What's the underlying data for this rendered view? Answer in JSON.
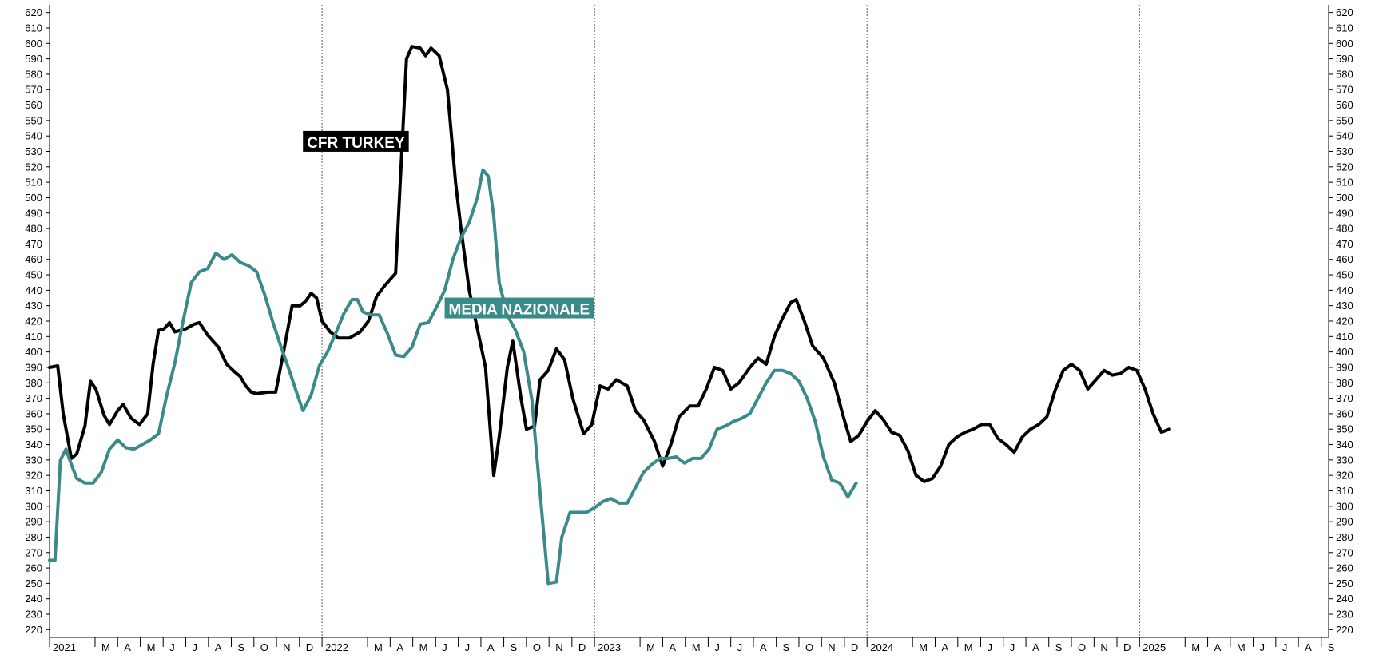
{
  "chart_data": {
    "type": "line",
    "title": "",
    "xlabel": "",
    "ylabel": "",
    "ylim": [
      215,
      625
    ],
    "y_ticks": [
      220,
      230,
      240,
      250,
      260,
      270,
      280,
      290,
      300,
      310,
      320,
      330,
      340,
      350,
      360,
      370,
      380,
      390,
      400,
      410,
      420,
      430,
      440,
      450,
      460,
      470,
      480,
      490,
      500,
      510,
      520,
      530,
      540,
      550,
      560,
      570,
      580,
      590,
      600,
      610,
      620
    ],
    "x_range": [
      2021.0,
      2025.694
    ],
    "grid": "vertical dotted lines at year boundaries",
    "x_axis_labels": [
      {
        "x": 2021.0,
        "text": "2021",
        "year": true
      },
      {
        "x": 2021.167,
        "text": "M"
      },
      {
        "x": 2021.25,
        "text": "A"
      },
      {
        "x": 2021.333,
        "text": "M"
      },
      {
        "x": 2021.417,
        "text": "J"
      },
      {
        "x": 2021.5,
        "text": "J"
      },
      {
        "x": 2021.583,
        "text": "A"
      },
      {
        "x": 2021.667,
        "text": "S"
      },
      {
        "x": 2021.75,
        "text": "O"
      },
      {
        "x": 2021.833,
        "text": "N"
      },
      {
        "x": 2021.917,
        "text": "D"
      },
      {
        "x": 2022.0,
        "text": "2022",
        "year": true
      },
      {
        "x": 2022.167,
        "text": "M"
      },
      {
        "x": 2022.25,
        "text": "A"
      },
      {
        "x": 2022.333,
        "text": "M"
      },
      {
        "x": 2022.417,
        "text": "J"
      },
      {
        "x": 2022.5,
        "text": "J"
      },
      {
        "x": 2022.583,
        "text": "A"
      },
      {
        "x": 2022.667,
        "text": "S"
      },
      {
        "x": 2022.75,
        "text": "O"
      },
      {
        "x": 2022.833,
        "text": "N"
      },
      {
        "x": 2022.917,
        "text": "D"
      },
      {
        "x": 2023.0,
        "text": "2023",
        "year": true
      },
      {
        "x": 2023.167,
        "text": "M"
      },
      {
        "x": 2023.25,
        "text": "A"
      },
      {
        "x": 2023.333,
        "text": "M"
      },
      {
        "x": 2023.417,
        "text": "J"
      },
      {
        "x": 2023.5,
        "text": "J"
      },
      {
        "x": 2023.583,
        "text": "A"
      },
      {
        "x": 2023.667,
        "text": "S"
      },
      {
        "x": 2023.75,
        "text": "O"
      },
      {
        "x": 2023.833,
        "text": "N"
      },
      {
        "x": 2023.917,
        "text": "D"
      },
      {
        "x": 2024.0,
        "text": "2024",
        "year": true
      },
      {
        "x": 2024.167,
        "text": "M"
      },
      {
        "x": 2024.25,
        "text": "A"
      },
      {
        "x": 2024.333,
        "text": "M"
      },
      {
        "x": 2024.417,
        "text": "J"
      },
      {
        "x": 2024.5,
        "text": "J"
      },
      {
        "x": 2024.583,
        "text": "A"
      },
      {
        "x": 2024.667,
        "text": "S"
      },
      {
        "x": 2024.75,
        "text": "O"
      },
      {
        "x": 2024.833,
        "text": "N"
      },
      {
        "x": 2024.917,
        "text": "D"
      },
      {
        "x": 2025.0,
        "text": "2025",
        "year": true
      },
      {
        "x": 2025.167,
        "text": "M"
      },
      {
        "x": 2025.25,
        "text": "A"
      },
      {
        "x": 2025.333,
        "text": "M"
      },
      {
        "x": 2025.417,
        "text": "J"
      },
      {
        "x": 2025.5,
        "text": "J"
      },
      {
        "x": 2025.583,
        "text": "A"
      },
      {
        "x": 2025.667,
        "text": "S"
      }
    ],
    "year_gridlines": [
      2022.0,
      2023.0,
      2024.0,
      2025.0
    ],
    "series": [
      {
        "name": "CFR TURKEY",
        "color": "#000000",
        "label_at": {
          "x": 2021.93,
          "y": 536
        },
        "points": [
          [
            2021.0,
            390
          ],
          [
            2021.03,
            391
          ],
          [
            2021.05,
            360
          ],
          [
            2021.08,
            331
          ],
          [
            2021.1,
            334
          ],
          [
            2021.13,
            352
          ],
          [
            2021.15,
            381
          ],
          [
            2021.17,
            376
          ],
          [
            2021.2,
            359
          ],
          [
            2021.22,
            353
          ],
          [
            2021.25,
            362
          ],
          [
            2021.27,
            366
          ],
          [
            2021.3,
            357
          ],
          [
            2021.33,
            353
          ],
          [
            2021.36,
            360
          ],
          [
            2021.38,
            392
          ],
          [
            2021.4,
            414
          ],
          [
            2021.42,
            415
          ],
          [
            2021.44,
            419
          ],
          [
            2021.46,
            413
          ],
          [
            2021.5,
            415
          ],
          [
            2021.53,
            418
          ],
          [
            2021.55,
            419
          ],
          [
            2021.58,
            411
          ],
          [
            2021.62,
            403
          ],
          [
            2021.65,
            392
          ],
          [
            2021.68,
            387
          ],
          [
            2021.7,
            384
          ],
          [
            2021.72,
            378
          ],
          [
            2021.74,
            374
          ],
          [
            2021.76,
            373
          ],
          [
            2021.8,
            374
          ],
          [
            2021.83,
            374
          ],
          [
            2021.86,
            401
          ],
          [
            2021.89,
            430
          ],
          [
            2021.92,
            430
          ],
          [
            2021.94,
            433
          ],
          [
            2021.96,
            438
          ],
          [
            2021.98,
            435
          ],
          [
            2022.0,
            420
          ],
          [
            2022.03,
            413
          ],
          [
            2022.06,
            409
          ],
          [
            2022.1,
            409
          ],
          [
            2022.14,
            413
          ],
          [
            2022.17,
            420
          ],
          [
            2022.2,
            436
          ],
          [
            2022.23,
            443
          ],
          [
            2022.27,
            451
          ],
          [
            2022.31,
            590
          ],
          [
            2022.33,
            598
          ],
          [
            2022.36,
            597
          ],
          [
            2022.38,
            592
          ],
          [
            2022.4,
            597
          ],
          [
            2022.43,
            592
          ],
          [
            2022.46,
            570
          ],
          [
            2022.49,
            510
          ],
          [
            2022.51,
            480
          ],
          [
            2022.54,
            440
          ],
          [
            2022.57,
            415
          ],
          [
            2022.6,
            390
          ],
          [
            2022.63,
            320
          ],
          [
            2022.65,
            345
          ],
          [
            2022.68,
            390
          ],
          [
            2022.7,
            407
          ],
          [
            2022.73,
            370
          ],
          [
            2022.75,
            350
          ],
          [
            2022.78,
            352
          ],
          [
            2022.8,
            382
          ],
          [
            2022.83,
            388
          ],
          [
            2022.86,
            402
          ],
          [
            2022.89,
            395
          ],
          [
            2022.92,
            370
          ],
          [
            2022.96,
            347
          ],
          [
            2022.99,
            353
          ],
          [
            2023.02,
            378
          ],
          [
            2023.05,
            376
          ],
          [
            2023.08,
            382
          ],
          [
            2023.12,
            378
          ],
          [
            2023.15,
            362
          ],
          [
            2023.18,
            356
          ],
          [
            2023.22,
            342
          ],
          [
            2023.25,
            326
          ],
          [
            2023.28,
            340
          ],
          [
            2023.31,
            358
          ],
          [
            2023.35,
            365
          ],
          [
            2023.38,
            365
          ],
          [
            2023.41,
            376
          ],
          [
            2023.44,
            390
          ],
          [
            2023.47,
            388
          ],
          [
            2023.5,
            376
          ],
          [
            2023.53,
            380
          ],
          [
            2023.57,
            390
          ],
          [
            2023.6,
            396
          ],
          [
            2023.63,
            392
          ],
          [
            2023.66,
            410
          ],
          [
            2023.69,
            422
          ],
          [
            2023.72,
            432
          ],
          [
            2023.74,
            434
          ],
          [
            2023.77,
            420
          ],
          [
            2023.8,
            404
          ],
          [
            2023.84,
            396
          ],
          [
            2023.88,
            380
          ],
          [
            2023.91,
            360
          ],
          [
            2023.94,
            342
          ],
          [
            2023.97,
            346
          ],
          [
            2024.0,
            355
          ],
          [
            2024.03,
            362
          ],
          [
            2024.06,
            356
          ],
          [
            2024.09,
            348
          ],
          [
            2024.12,
            346
          ],
          [
            2024.15,
            336
          ],
          [
            2024.18,
            320
          ],
          [
            2024.21,
            316
          ],
          [
            2024.24,
            318
          ],
          [
            2024.27,
            326
          ],
          [
            2024.3,
            340
          ],
          [
            2024.33,
            345
          ],
          [
            2024.36,
            348
          ],
          [
            2024.39,
            350
          ],
          [
            2024.42,
            353
          ],
          [
            2024.45,
            353
          ],
          [
            2024.48,
            344
          ],
          [
            2024.51,
            340
          ],
          [
            2024.54,
            335
          ],
          [
            2024.57,
            345
          ],
          [
            2024.6,
            350
          ],
          [
            2024.63,
            353
          ],
          [
            2024.66,
            358
          ],
          [
            2024.69,
            375
          ],
          [
            2024.72,
            388
          ],
          [
            2024.75,
            392
          ],
          [
            2024.78,
            388
          ],
          [
            2024.81,
            376
          ],
          [
            2024.84,
            382
          ],
          [
            2024.87,
            388
          ],
          [
            2024.9,
            385
          ],
          [
            2024.93,
            386
          ],
          [
            2024.96,
            390
          ],
          [
            2024.99,
            388
          ],
          [
            2025.02,
            376
          ],
          [
            2025.05,
            360
          ],
          [
            2025.08,
            348
          ],
          [
            2025.11,
            350
          ]
        ]
      },
      {
        "name": "MEDIA NAZIONALE",
        "color": "#3a8a8a",
        "label_at": {
          "x": 2022.45,
          "y": 428
        },
        "points": [
          [
            2021.0,
            265
          ],
          [
            2021.02,
            265
          ],
          [
            2021.04,
            330
          ],
          [
            2021.06,
            337
          ],
          [
            2021.08,
            327
          ],
          [
            2021.1,
            318
          ],
          [
            2021.13,
            315
          ],
          [
            2021.16,
            315
          ],
          [
            2021.19,
            322
          ],
          [
            2021.22,
            337
          ],
          [
            2021.25,
            343
          ],
          [
            2021.28,
            338
          ],
          [
            2021.31,
            337
          ],
          [
            2021.34,
            340
          ],
          [
            2021.37,
            343
          ],
          [
            2021.4,
            347
          ],
          [
            2021.43,
            372
          ],
          [
            2021.46,
            393
          ],
          [
            2021.49,
            420
          ],
          [
            2021.52,
            445
          ],
          [
            2021.55,
            452
          ],
          [
            2021.58,
            454
          ],
          [
            2021.61,
            464
          ],
          [
            2021.64,
            460
          ],
          [
            2021.67,
            463
          ],
          [
            2021.7,
            458
          ],
          [
            2021.73,
            456
          ],
          [
            2021.76,
            452
          ],
          [
            2021.79,
            437
          ],
          [
            2021.82,
            419
          ],
          [
            2021.85,
            403
          ],
          [
            2021.88,
            388
          ],
          [
            2021.91,
            372
          ],
          [
            2021.93,
            362
          ],
          [
            2021.96,
            372
          ],
          [
            2021.99,
            391
          ],
          [
            2022.02,
            400
          ],
          [
            2022.05,
            412
          ],
          [
            2022.08,
            425
          ],
          [
            2022.11,
            434
          ],
          [
            2022.13,
            434
          ],
          [
            2022.15,
            426
          ],
          [
            2022.18,
            424
          ],
          [
            2022.21,
            424
          ],
          [
            2022.24,
            412
          ],
          [
            2022.27,
            398
          ],
          [
            2022.3,
            397
          ],
          [
            2022.33,
            403
          ],
          [
            2022.36,
            418
          ],
          [
            2022.39,
            419
          ],
          [
            2022.42,
            429
          ],
          [
            2022.45,
            440
          ],
          [
            2022.48,
            460
          ],
          [
            2022.51,
            474
          ],
          [
            2022.54,
            484
          ],
          [
            2022.57,
            500
          ],
          [
            2022.59,
            518
          ],
          [
            2022.61,
            514
          ],
          [
            2022.63,
            488
          ],
          [
            2022.65,
            445
          ],
          [
            2022.68,
            424
          ],
          [
            2022.71,
            414
          ],
          [
            2022.74,
            400
          ],
          [
            2022.77,
            369
          ],
          [
            2022.8,
            309
          ],
          [
            2022.83,
            250
          ],
          [
            2022.86,
            251
          ],
          [
            2022.88,
            280
          ],
          [
            2022.91,
            296
          ],
          [
            2022.94,
            296
          ],
          [
            2022.97,
            296
          ],
          [
            2023.0,
            299
          ],
          [
            2023.03,
            303
          ],
          [
            2023.06,
            305
          ],
          [
            2023.09,
            302
          ],
          [
            2023.12,
            302
          ],
          [
            2023.15,
            312
          ],
          [
            2023.18,
            322
          ],
          [
            2023.21,
            327
          ],
          [
            2023.24,
            331
          ],
          [
            2023.27,
            331
          ],
          [
            2023.3,
            332
          ],
          [
            2023.33,
            328
          ],
          [
            2023.36,
            331
          ],
          [
            2023.39,
            331
          ],
          [
            2023.42,
            337
          ],
          [
            2023.45,
            350
          ],
          [
            2023.48,
            352
          ],
          [
            2023.51,
            355
          ],
          [
            2023.54,
            357
          ],
          [
            2023.57,
            360
          ],
          [
            2023.6,
            370
          ],
          [
            2023.63,
            380
          ],
          [
            2023.66,
            388
          ],
          [
            2023.69,
            388
          ],
          [
            2023.72,
            386
          ],
          [
            2023.75,
            381
          ],
          [
            2023.78,
            370
          ],
          [
            2023.81,
            355
          ],
          [
            2023.84,
            332
          ],
          [
            2023.87,
            317
          ],
          [
            2023.9,
            315
          ],
          [
            2023.93,
            306
          ],
          [
            2023.96,
            315
          ]
        ]
      }
    ]
  }
}
